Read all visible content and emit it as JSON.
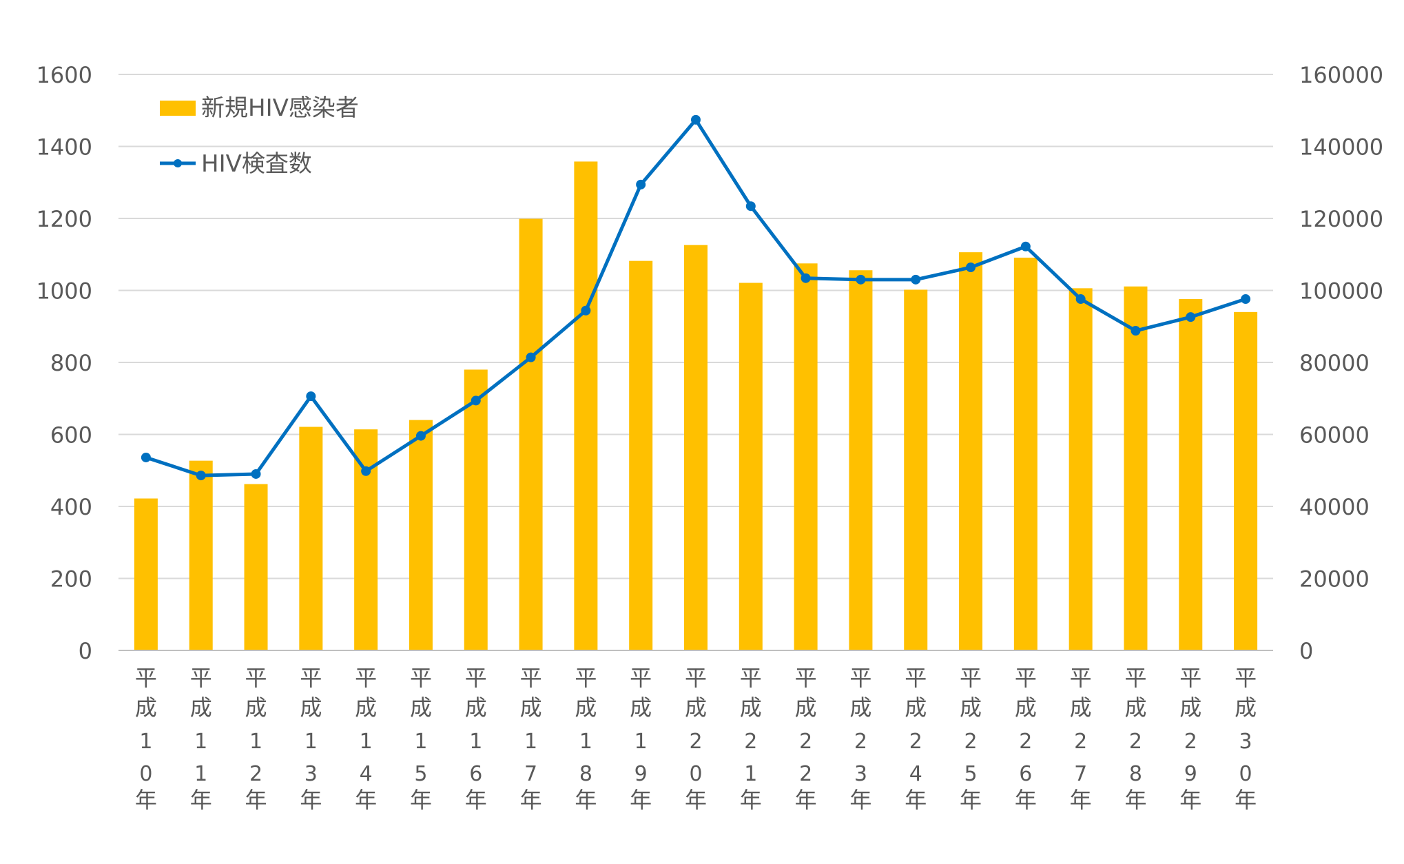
{
  "chart_data": {
    "type": "bar",
    "title": "",
    "xlabel": "",
    "ylabel": "",
    "y2label": "",
    "ylim": [
      0,
      1600
    ],
    "y2lim": [
      0,
      160000
    ],
    "yticks": [
      "0",
      "200",
      "400",
      "600",
      "800",
      "1000",
      "1200",
      "1400",
      "1600"
    ],
    "y2ticks": [
      "0",
      "20000",
      "40000",
      "60000",
      "80000",
      "100000",
      "120000",
      "140000",
      "160000"
    ],
    "grid": true,
    "legend_position": "top-left",
    "categories": [
      "平成10年",
      "平成11年",
      "平成12年",
      "平成13年",
      "平成14年",
      "平成15年",
      "平成16年",
      "平成17年",
      "平成18年",
      "平成19年",
      "平成20年",
      "平成21年",
      "平成22年",
      "平成23年",
      "平成24年",
      "平成25年",
      "平成26年",
      "平成27年",
      "平成28年",
      "平成29年",
      "平成30年"
    ],
    "series": [
      {
        "name": "新規HIV感染者",
        "type": "bar",
        "axis": "left",
        "color": "#FFC000",
        "values": [
          422,
          527,
          462,
          621,
          614,
          640,
          780,
          1199,
          1358,
          1082,
          1126,
          1021,
          1075,
          1056,
          1002,
          1106,
          1091,
          1006,
          1011,
          976,
          940
        ]
      },
      {
        "name": "HIV検査数",
        "type": "line",
        "axis": "right",
        "color": "#0070C0",
        "values": [
          53600,
          48600,
          49000,
          70600,
          49800,
          59600,
          69400,
          81400,
          94400,
          129400,
          147400,
          123400,
          103400,
          103000,
          103000,
          106400,
          112200,
          97600,
          88800,
          92600,
          97600
        ]
      }
    ]
  }
}
